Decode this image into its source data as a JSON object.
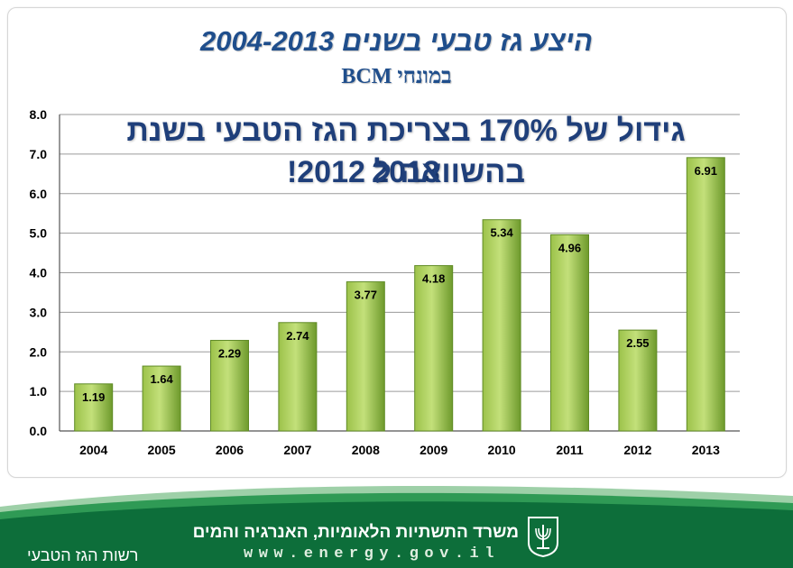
{
  "title": "היצע גז טבעי בשנים 2004-2013",
  "subtitle": "במונחי BCM",
  "headline": {
    "line1": "גידול של 170% בצריכת הגז הטבעי בשנת 2013",
    "line2": "בהשוואה ל 2012!"
  },
  "chart_data": {
    "type": "bar",
    "categories": [
      "2004",
      "2005",
      "2006",
      "2007",
      "2008",
      "2009",
      "2010",
      "2011",
      "2012",
      "2013"
    ],
    "values": [
      1.19,
      1.64,
      2.29,
      2.74,
      3.77,
      4.18,
      5.34,
      4.96,
      2.55,
      6.91
    ],
    "value_labels": [
      "1.19",
      "1.64",
      "2.29",
      "2.74",
      "3.77",
      "4.18",
      "5.34",
      "4.96",
      "2.55",
      "6.91"
    ],
    "ylim": [
      0,
      8
    ],
    "yticks": [
      "0.0",
      "1.0",
      "2.0",
      "3.0",
      "4.0",
      "5.0",
      "6.0",
      "7.0",
      "8.0"
    ],
    "grid": true,
    "legend": "none",
    "colors": {
      "bar_light": "#c3e07a",
      "bar_dark": "#6e9a2c",
      "grid": "#9a9a9a",
      "title": "#1f4e8c"
    }
  },
  "footer": {
    "ministry": "משרד התשתיות הלאומיות, האנרגיה והמים",
    "url": "www.energy.gov.il",
    "authority": "רשות הגז הטבעי",
    "colors": {
      "wave_dark": "#0d6e3a",
      "wave_light": "#2f9a55",
      "stripe": "#9ed0a8"
    }
  }
}
